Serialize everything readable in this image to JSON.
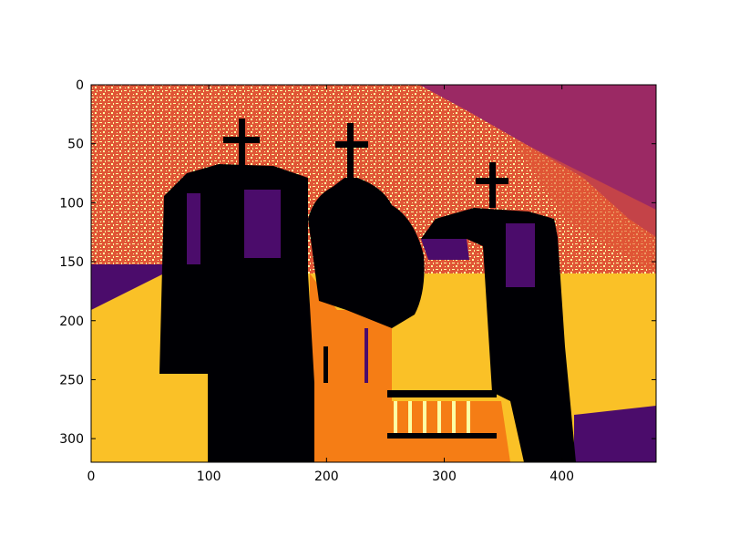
{
  "chart_data": {
    "type": "heatmap",
    "colormap": "inferno",
    "quantized_levels": 6,
    "x_axis": {
      "range": [
        0,
        480
      ],
      "ticks": [
        "0",
        "100",
        "200",
        "300",
        "400"
      ]
    },
    "y_axis": {
      "range": [
        0,
        320
      ],
      "inverted": true,
      "ticks": [
        "0",
        "50",
        "100",
        "150",
        "200",
        "250",
        "300"
      ]
    },
    "grid": false,
    "legend": "none",
    "title": "",
    "xlabel": "",
    "ylabel": "",
    "palette": {
      "black": "#000004",
      "indigo": "#4b0c6b",
      "magenta": "#9b2964",
      "red": "#e05536",
      "orange": "#f57d15",
      "yellow": "#fac127",
      "cream": "#fcffa4"
    }
  }
}
